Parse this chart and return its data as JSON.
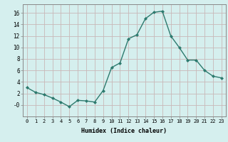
{
  "x": [
    0,
    1,
    2,
    3,
    4,
    5,
    6,
    7,
    8,
    9,
    10,
    11,
    12,
    13,
    14,
    15,
    16,
    17,
    18,
    19,
    20,
    21,
    22,
    23
  ],
  "y": [
    3,
    2.2,
    1.8,
    1.2,
    0.5,
    -0.3,
    0.8,
    0.7,
    0.5,
    2.5,
    6.5,
    7.3,
    11.5,
    12.2,
    15.0,
    16.1,
    16.3,
    12.0,
    10.0,
    7.8,
    7.8,
    6.0,
    5.0,
    4.7
  ],
  "xlabel": "Humidex (Indice chaleur)",
  "xlim": [
    -0.5,
    23.5
  ],
  "ylim": [
    -2,
    17.5
  ],
  "yticks": [
    0,
    2,
    4,
    6,
    8,
    10,
    12,
    14,
    16
  ],
  "xtick_labels": [
    "0",
    "1",
    "2",
    "3",
    "4",
    "5",
    "6",
    "7",
    "8",
    "9",
    "10",
    "11",
    "12",
    "13",
    "14",
    "15",
    "16",
    "17",
    "18",
    "19",
    "20",
    "21",
    "22",
    "23"
  ],
  "line_color": "#2d7a6e",
  "marker_color": "#2d7a6e",
  "bg_color": "#d5efee",
  "grid_color": "#c8b8b8",
  "spine_color": "#888888"
}
